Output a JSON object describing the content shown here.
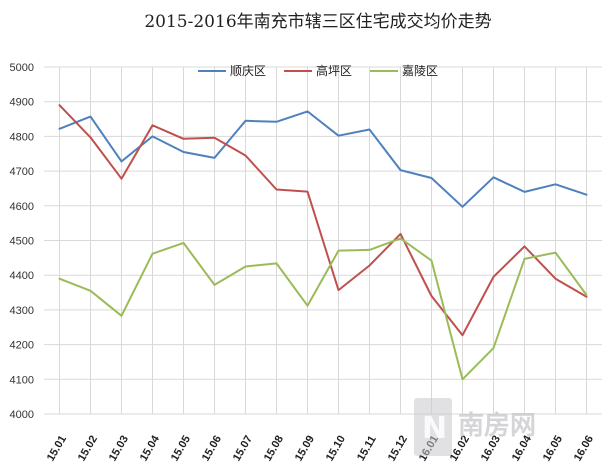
{
  "chart_data": {
    "type": "line",
    "title": "2015-2016年南充市辖三区住宅成交均价走势",
    "categories": [
      "15.01",
      "15.02",
      "15.03",
      "15.04",
      "15.05",
      "15.06",
      "15.07",
      "15.08",
      "15.09",
      "15.10",
      "15.11",
      "15.12",
      "16.01",
      "16.02",
      "16.03",
      "16.04",
      "16.05",
      "16.06"
    ],
    "ylim": [
      4000,
      5000
    ],
    "yticks": [
      4000,
      4100,
      4200,
      4300,
      4400,
      4500,
      4600,
      4700,
      4800,
      4900,
      5000
    ],
    "grid": true,
    "legend_position": "top",
    "series": [
      {
        "name": "顺庆区",
        "color": "#4f81bd",
        "values": [
          4822,
          4857,
          4728,
          4800,
          4755,
          4738,
          4845,
          4842,
          4872,
          4802,
          4820,
          4703,
          4680,
          4597,
          4682,
          4640,
          4662,
          4632
        ]
      },
      {
        "name": "高坪区",
        "color": "#c0504d",
        "values": [
          4890,
          4797,
          4678,
          4832,
          4793,
          4796,
          4745,
          4647,
          4641,
          4357,
          4428,
          4519,
          4340,
          4227,
          4395,
          4483,
          4390,
          4338
        ]
      },
      {
        "name": "嘉陵区",
        "color": "#9bbb59",
        "values": [
          4390,
          4355,
          4283,
          4462,
          4493,
          4372,
          4425,
          4434,
          4312,
          4471,
          4473,
          4506,
          4442,
          4100,
          4190,
          4447,
          4465,
          4343
        ]
      }
    ]
  },
  "watermark": {
    "text": "南房网"
  }
}
